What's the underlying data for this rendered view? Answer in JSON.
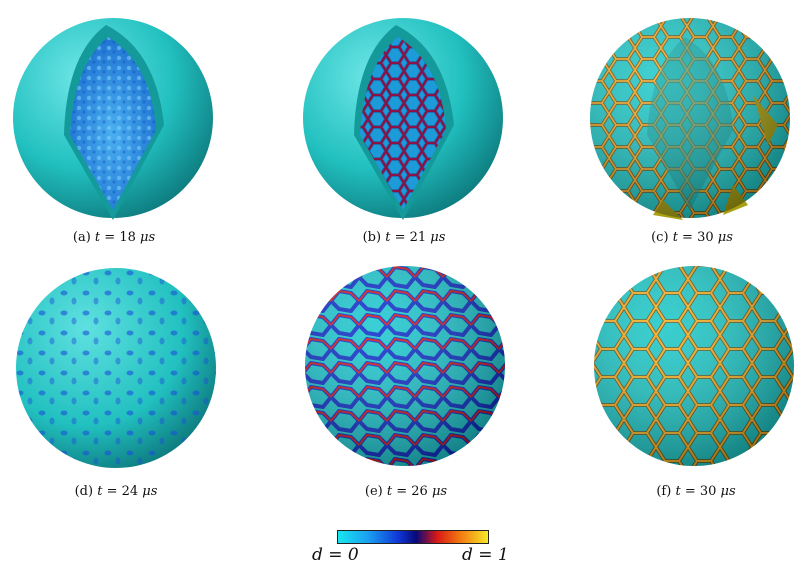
{
  "captions": [
    {
      "label": "(a)",
      "var": "t",
      "eq": " = 18 ",
      "unit": "μs"
    },
    {
      "label": "(b)",
      "var": "t",
      "eq": " = 21 ",
      "unit": "μs"
    },
    {
      "label": "(c)",
      "var": "t",
      "eq": " = 30 ",
      "unit": "μs"
    },
    {
      "label": "(d)",
      "var": "t",
      "eq": " = 24 ",
      "unit": "μs"
    },
    {
      "label": "(e)",
      "var": "t",
      "eq": " = 26 ",
      "unit": "μs"
    },
    {
      "label": "(f)",
      "var": "t",
      "eq": " = 30 ",
      "unit": "μs"
    }
  ],
  "colorbar": {
    "min_label": "d = 0",
    "max_label": "d = 1"
  },
  "colors": {
    "shell": "#22c6c6",
    "interior": "#2a8fe6",
    "crack_low": "#1038d8",
    "crack_mid": "#d81818",
    "crack_high": "#f8c020"
  }
}
